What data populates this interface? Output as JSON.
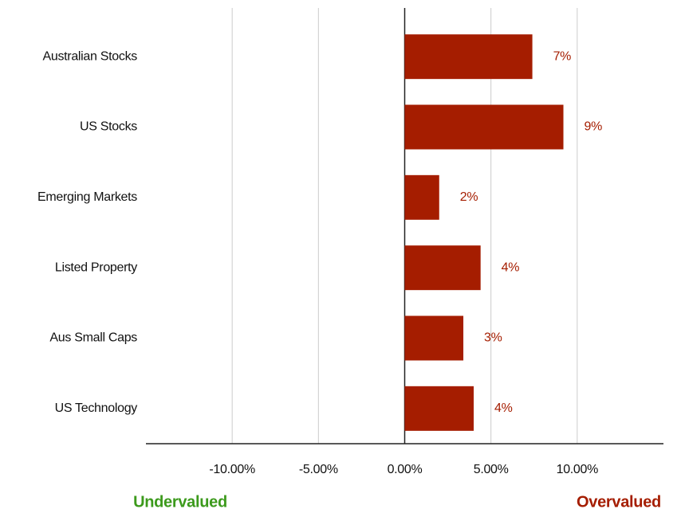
{
  "chart_data": {
    "type": "hbar",
    "categories": [
      "Australian Stocks",
      "US Stocks",
      "Emerging Markets",
      "Listed Property",
      "Aus Small Caps",
      "US Technology"
    ],
    "values": [
      7.4,
      9.2,
      2.0,
      4.4,
      3.4,
      4.0
    ],
    "value_labels": [
      "7%",
      "9%",
      "2%",
      "4%",
      "3%",
      "4%"
    ],
    "color": "#a51d00",
    "xlim": [
      -15,
      15
    ],
    "xticks": [
      {
        "value": -10,
        "label": "-10.00%"
      },
      {
        "value": -5,
        "label": "-5.00%"
      },
      {
        "value": 0,
        "label": "0.00%"
      },
      {
        "value": 5,
        "label": "5.00%"
      },
      {
        "value": 10,
        "label": "10.00%"
      }
    ],
    "grid": true,
    "annotations": [
      {
        "text": "Undervalued",
        "color": "#3c9a1c"
      },
      {
        "text": "Overvalued",
        "color": "#a51d00"
      }
    ]
  }
}
